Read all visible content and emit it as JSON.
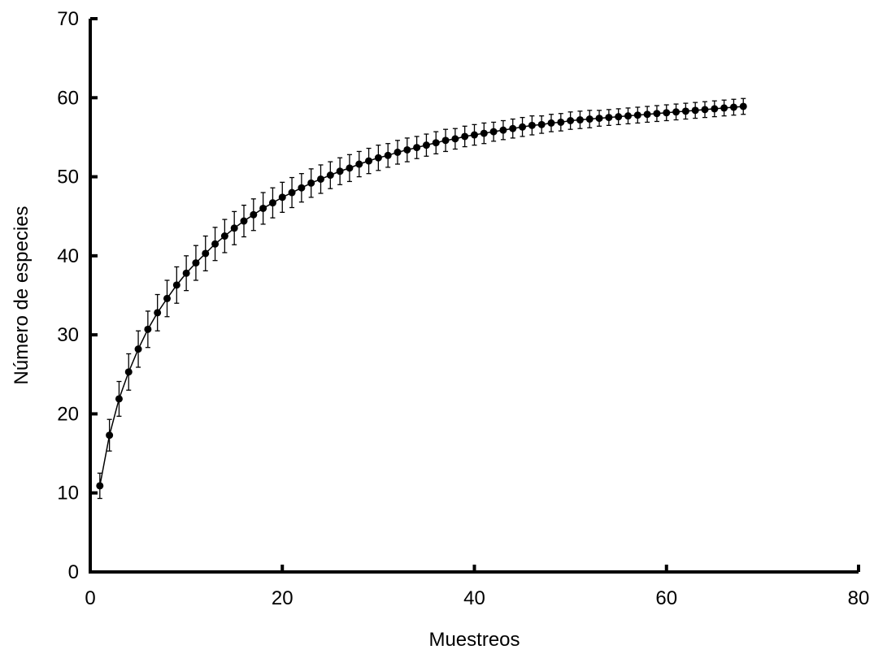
{
  "chart_data": {
    "type": "line",
    "title": "",
    "xlabel": "Muestreos",
    "ylabel": "Número de especies",
    "xlim": [
      0,
      80
    ],
    "ylim": [
      0,
      70
    ],
    "x_ticks": [
      "0",
      "20",
      "40",
      "60",
      "80"
    ],
    "y_ticks": [
      "0",
      "10",
      "20",
      "30",
      "40",
      "50",
      "60",
      "70"
    ],
    "grid": false,
    "legend": "none",
    "line_color": "#000000",
    "series": [
      {
        "x": [
          1,
          2,
          3,
          4,
          5,
          6,
          7,
          8,
          9,
          10,
          11,
          12,
          13,
          14,
          15,
          16,
          17,
          18,
          19,
          20,
          21,
          22,
          23,
          24,
          25,
          26,
          27,
          28,
          29,
          30,
          31,
          32,
          33,
          34,
          35,
          36,
          37,
          38,
          39,
          40,
          41,
          42,
          43,
          44,
          45,
          46,
          47,
          48,
          49,
          50,
          51,
          52,
          53,
          54,
          55,
          56,
          57,
          58,
          59,
          60,
          61,
          62,
          63,
          64,
          65,
          66,
          67,
          68
        ],
        "y": [
          10.9,
          17.3,
          21.9,
          25.3,
          28.2,
          30.7,
          32.8,
          34.6,
          36.3,
          37.8,
          39.1,
          40.3,
          41.5,
          42.5,
          43.5,
          44.4,
          45.2,
          46.0,
          46.7,
          47.4,
          48.0,
          48.6,
          49.2,
          49.7,
          50.2,
          50.7,
          51.1,
          51.6,
          52.0,
          52.4,
          52.7,
          53.1,
          53.4,
          53.7,
          54.0,
          54.3,
          54.6,
          54.8,
          55.1,
          55.3,
          55.5,
          55.7,
          55.9,
          56.1,
          56.3,
          56.5,
          56.6,
          56.8,
          56.9,
          57.1,
          57.2,
          57.3,
          57.4,
          57.5,
          57.6,
          57.7,
          57.8,
          57.9,
          58.0,
          58.1,
          58.2,
          58.3,
          58.4,
          58.5,
          58.6,
          58.7,
          58.8,
          58.9
        ],
        "error": [
          1.6,
          2.0,
          2.2,
          2.3,
          2.3,
          2.3,
          2.3,
          2.3,
          2.3,
          2.2,
          2.2,
          2.2,
          2.1,
          2.1,
          2.1,
          2.0,
          2.0,
          2.0,
          1.9,
          1.9,
          1.9,
          1.8,
          1.8,
          1.8,
          1.7,
          1.7,
          1.7,
          1.6,
          1.6,
          1.6,
          1.5,
          1.5,
          1.5,
          1.4,
          1.4,
          1.4,
          1.4,
          1.3,
          1.3,
          1.3,
          1.3,
          1.2,
          1.2,
          1.2,
          1.2,
          1.2,
          1.1,
          1.1,
          1.1,
          1.1,
          1.1,
          1.1,
          1.0,
          1.0,
          1.0,
          1.0,
          1.0,
          1.0,
          1.0,
          1.0,
          1.0,
          1.0,
          1.0,
          1.0,
          1.0,
          1.0,
          1.0,
          1.0
        ]
      }
    ]
  }
}
